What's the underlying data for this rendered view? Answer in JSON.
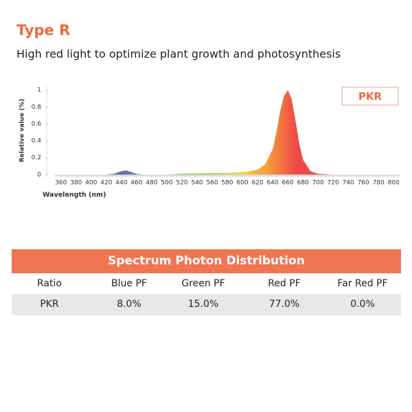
{
  "header": {
    "title": "Type R",
    "subtitle": "High red light to optimize plant growth and photosynthesis"
  },
  "chart_data": {
    "type": "area",
    "x_label": "Wavelength (nm)",
    "y_label": "Relative value (%)",
    "x": [
      360,
      380,
      400,
      420,
      430,
      440,
      445,
      450,
      460,
      470,
      480,
      500,
      520,
      540,
      560,
      580,
      600,
      610,
      620,
      630,
      640,
      645,
      650,
      655,
      660,
      665,
      670,
      675,
      680,
      690,
      700,
      720,
      760,
      800
    ],
    "series": [
      {
        "name": "PKR",
        "colors": [
          "#4f5cc4",
          "#8ccf55",
          "#f2d547",
          "#f59a3b",
          "#ef4848"
        ],
        "values": [
          0,
          0,
          0,
          0,
          0.01,
          0.04,
          0.05,
          0.04,
          0.01,
          0,
          0,
          0,
          0.01,
          0.015,
          0.02,
          0.02,
          0.03,
          0.04,
          0.06,
          0.12,
          0.3,
          0.5,
          0.75,
          0.93,
          1,
          0.9,
          0.65,
          0.38,
          0.18,
          0.04,
          0.01,
          0,
          0,
          0
        ]
      }
    ],
    "xlim": [
      352,
      808
    ],
    "ylim": [
      -0.03,
      1.05
    ],
    "xticks": [
      360,
      380,
      400,
      420,
      440,
      460,
      480,
      500,
      520,
      540,
      560,
      580,
      600,
      620,
      640,
      660,
      680,
      700,
      720,
      740,
      760,
      780,
      800
    ],
    "yticks": [
      0,
      0.2,
      0.4,
      0.6,
      0.8,
      1
    ],
    "legend": "top-right"
  },
  "table": {
    "title": "Spectrum Photon Distribution",
    "columns": [
      "Ratio",
      "Blue PF",
      "Green PF",
      "Red PF",
      "Far Red PF"
    ],
    "rows": [
      [
        "PKR",
        "8.0%",
        "15.0%",
        "77.0%",
        "0.0%"
      ]
    ]
  }
}
